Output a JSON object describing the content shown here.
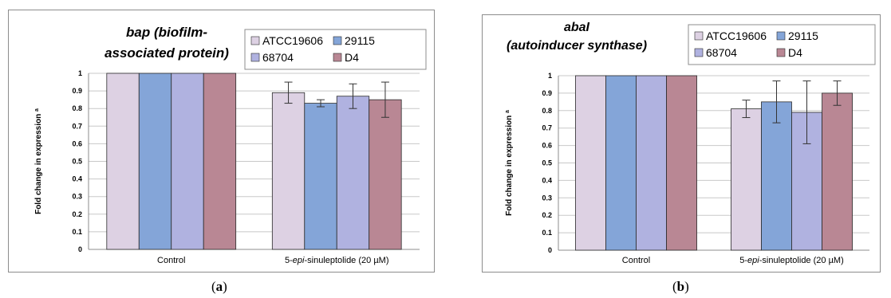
{
  "chart_data": [
    {
      "type": "bar",
      "title_line1": "bap (biofilm-",
      "title_line2": "associated protein)",
      "ylabel": "Fold change in expression",
      "ylabel_superscript": "a",
      "ylim": [
        0,
        1
      ],
      "yticks": [
        "0",
        "0.1",
        "0.2",
        "0.3",
        "0.4",
        "0.5",
        "0.6",
        "0.7",
        "0.8",
        "0.9",
        "1"
      ],
      "categories": [
        "Control",
        "5-epi-sinuleptolide (20 µM)"
      ],
      "category2_parts": [
        "5-",
        "epi",
        "-sinuleptolide  (20 µM)"
      ],
      "series": [
        {
          "name": "ATCC19606",
          "color": "#ddd1e3",
          "values": [
            1,
            0.89
          ],
          "errors": [
            0,
            0.06
          ]
        },
        {
          "name": "29115",
          "color": "#84a5d8",
          "values": [
            1,
            0.83
          ],
          "errors": [
            0,
            0.02
          ]
        },
        {
          "name": "68704",
          "color": "#b0b2e0",
          "values": [
            1,
            0.87
          ],
          "errors": [
            0,
            0.07
          ]
        },
        {
          "name": "D4",
          "color": "#b98794",
          "values": [
            1,
            0.85
          ],
          "errors": [
            0,
            0.1
          ]
        }
      ],
      "grid": true,
      "legend": "top-right",
      "panel_label": "a"
    },
    {
      "type": "bar",
      "title_line1": "abaI",
      "title_line2": "(autoinducer synthase)",
      "ylabel": "Fold change in expression",
      "ylabel_superscript": "a",
      "ylim": [
        0,
        1
      ],
      "yticks": [
        "0",
        "0.1",
        "0.2",
        "0.3",
        "0.4",
        "0.5",
        "0.6",
        "0.7",
        "0.8",
        "0.9",
        "1"
      ],
      "categories": [
        "Control",
        "5-epi-sinuleptolide (20 µM)"
      ],
      "category2_parts": [
        "5-",
        "epi",
        "-sinuleptolide  (20 µM)"
      ],
      "series": [
        {
          "name": "ATCC19606",
          "color": "#ddd1e3",
          "values": [
            1,
            0.81
          ],
          "errors": [
            0,
            0.05
          ]
        },
        {
          "name": "29115",
          "color": "#84a5d8",
          "values": [
            1,
            0.85
          ],
          "errors": [
            0,
            0.12
          ]
        },
        {
          "name": "68704",
          "color": "#b0b2e0",
          "values": [
            1,
            0.79
          ],
          "errors": [
            0,
            0.18
          ]
        },
        {
          "name": "D4",
          "color": "#b98794",
          "values": [
            1,
            0.9
          ],
          "errors": [
            0,
            0.07
          ]
        }
      ],
      "grid": true,
      "legend": "top-right",
      "panel_label": "b"
    }
  ]
}
